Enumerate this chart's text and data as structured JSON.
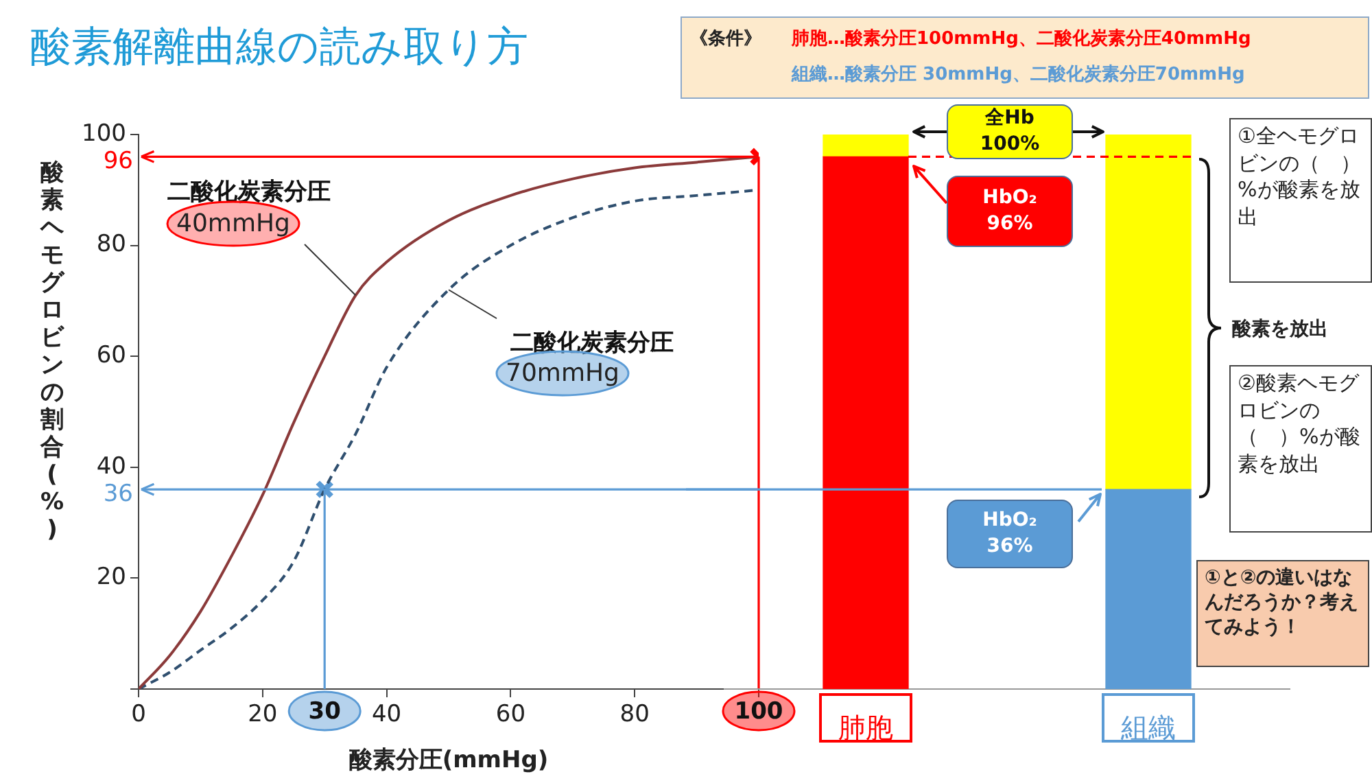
{
  "chart_data": [
    {
      "type": "line",
      "title": "酸素解離曲線の読み取り方",
      "xlabel": "酸素分圧(mmHg)",
      "ylabel": "酸素ヘモグロビンの割合(%)",
      "x": [
        0,
        5,
        10,
        15,
        20,
        25,
        30,
        35,
        40,
        50,
        60,
        70,
        80,
        90,
        100
      ],
      "series": [
        {
          "name": "二酸化炭素分圧 40mmHg",
          "color": "#8b3a3a",
          "line_style": "solid",
          "marker": "none",
          "values": [
            0,
            6,
            14,
            24,
            35,
            48,
            60,
            71,
            77,
            84.5,
            89,
            92,
            94,
            95,
            96
          ]
        },
        {
          "name": "二酸化炭素分圧 70mmHg",
          "color": "#2f4f6f",
          "line_style": "dashed",
          "marker": "none",
          "values": [
            0,
            3,
            7,
            11,
            16,
            23,
            36,
            46,
            58,
            72,
            80,
            85,
            88,
            89,
            90
          ]
        },
        {
          "type": "scatter",
          "color": "#ff0000",
          "marker": "cross",
          "x": [
            100
          ],
          "values": [
            96
          ]
        },
        {
          "type": "scatter",
          "color": "#5b9bd5",
          "marker": "cross",
          "x": [
            30
          ],
          "values": [
            36
          ]
        }
      ],
      "xlim": [
        0,
        100
      ],
      "ylim": [
        0,
        100
      ],
      "xticks": [
        0,
        20,
        40,
        60,
        80,
        {
          "value": 100,
          "label": null
        }
      ],
      "yticks": [
        {
          "value": 0,
          "label": null
        },
        20,
        40,
        60,
        80,
        100
      ],
      "ref_lines": [
        {
          "axis": "y",
          "value": 96,
          "label": "96",
          "color": "#ff0000"
        },
        {
          "axis": "y",
          "value": 36,
          "label": "36",
          "color": "#5b9bd5"
        },
        {
          "axis": "x",
          "value": 30,
          "label": "30",
          "color": "#5b9bd5"
        },
        {
          "axis": "x",
          "value": 100,
          "label": "100",
          "color": "#ff0000"
        }
      ],
      "annotations": [
        "《条件》",
        "肺胞…酸素分圧100mmHg、二酸化炭素分圧40mmHg",
        "組織…酸素分圧 30mmHg、二酸化炭素分圧70mmHg"
      ],
      "grid": false,
      "legend": false
    },
    {
      "type": "bar",
      "stacked": true,
      "categories": [
        "肺胞",
        "組織"
      ],
      "series": [
        {
          "colors": [
            "#ff0000",
            "#5b9bd5"
          ],
          "values": [
            96,
            36
          ]
        },
        {
          "colors": [
            "#ffff00",
            "#ffff00"
          ],
          "values": [
            4,
            64
          ]
        }
      ],
      "ylim": [
        0,
        100
      ],
      "tick_labels": "x",
      "ref_lines": [
        {
          "axis": "y",
          "value": 96,
          "color": "#ff0000",
          "line_style": "dashed"
        },
        {
          "axis": "y",
          "value": 36,
          "color": "#5b9bd5",
          "line_style": "solid"
        }
      ],
      "annotations": [
        "HbO₂ 96%",
        "全Hb 100%",
        "HbO₂ 36%",
        "①全ヘモグロビンの（　）%が酸素を放出",
        "酸素を放出",
        "②酸素ヘモグロビンの（　）%が酸素を放出",
        "①と②の違いはなんだろうか？考えてみよう！"
      ],
      "grid": false,
      "legend": false
    }
  ]
}
